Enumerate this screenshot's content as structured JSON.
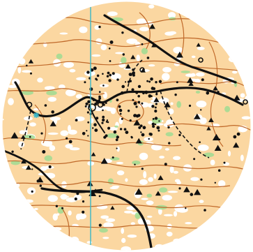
{
  "map": {
    "type": "orienteering-map",
    "shape": "circle",
    "colors": {
      "background": "#ffffff",
      "terrain_open": "#fbd7a1",
      "white_forest": "#ffffff",
      "green_vegetation": "#9fdc92",
      "contour": "#c0692a",
      "track": "#111111",
      "boulder": "#111111",
      "magnetic_north_line": "#38b7c8",
      "water_feature": "#38b7c8"
    },
    "features": {
      "main_track": "black-track",
      "north_line": "magnetic-north-line",
      "contours": "brown-contour-lines",
      "boulders": "black-dot-boulders",
      "cliffs": "black-triangle-cliffs",
      "vegetation": "green-vegetation-patches",
      "water": "cyan-asterisk-feature"
    }
  }
}
